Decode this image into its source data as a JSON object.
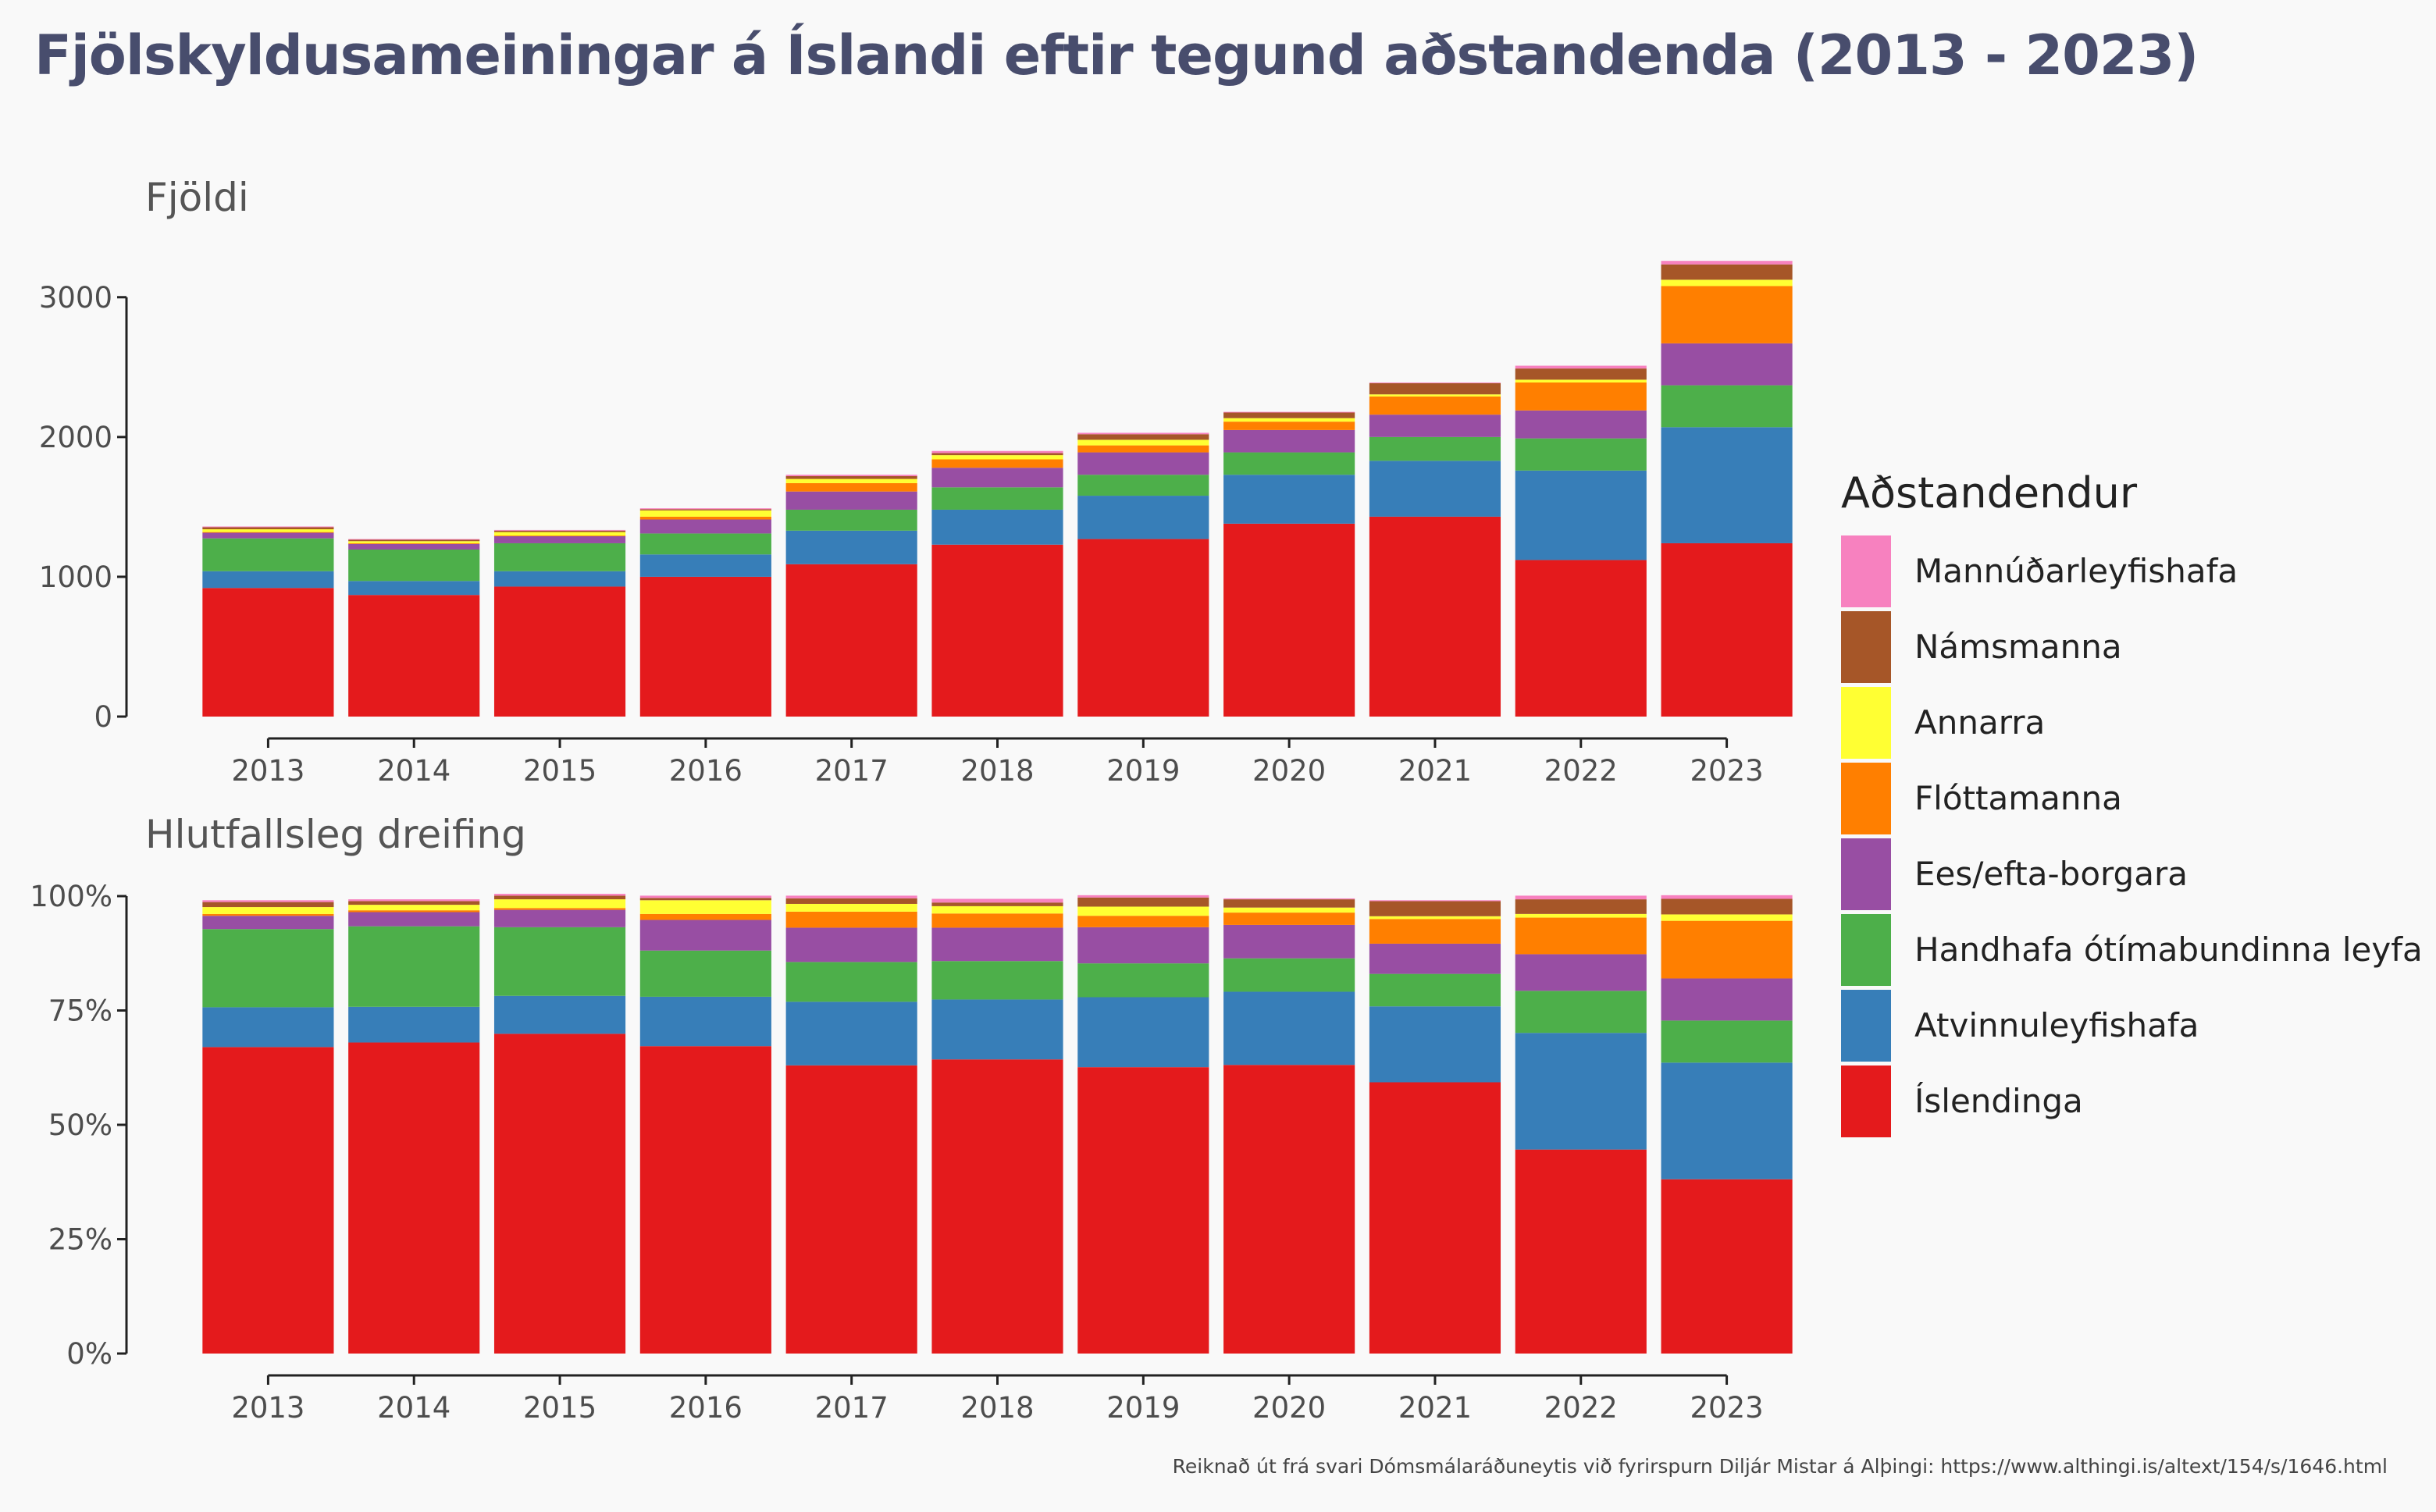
{
  "title": "Fjölskyldusameiningar á Íslandi eftir tegund aðstandenda (2013 - 2023)",
  "caption": "Reiknað út frá svari Dómsmálaráðuneytis við fyrirspurn Diljár Mistar á Alþingi: https://www.althingi.is/altext/154/s/1646.html",
  "legend": {
    "title": "Aðstandendur",
    "items": [
      {
        "label": "Mannúðarleyfishafa",
        "color": "#f781bf"
      },
      {
        "label": "Námsmanna",
        "color": "#a65628"
      },
      {
        "label": " Annarra",
        "color": "#ffff33"
      },
      {
        "label": "Flóttamanna",
        "color": "#ff7f00"
      },
      {
        "label": "Ees/efta-borgara",
        "color": "#984ea3"
      },
      {
        "label": "Handhafa ótímabundinna leyfa",
        "color": "#4daf4a"
      },
      {
        "label": "Atvinnuleyfishafa",
        "color": "#377eb8"
      },
      {
        "label": "Íslendinga",
        "color": "#e41a1c"
      }
    ]
  },
  "chart_data": [
    {
      "type": "bar",
      "stacked": true,
      "title": "Fjöldi",
      "categories": [
        "2013",
        "2014",
        "2015",
        "2016",
        "2017",
        "2018",
        "2019",
        "2020",
        "2021",
        "2022",
        "2023"
      ],
      "ylim": [
        0,
        3250
      ],
      "yticks": [
        "0",
        "1000",
        "2000",
        "3000"
      ],
      "ytick_values": [
        0,
        1000,
        2000,
        3000
      ],
      "series": [
        {
          "name": "Íslendinga",
          "color": "#e41a1c",
          "values": [
            920,
            870,
            930,
            1000,
            1090,
            1230,
            1270,
            1380,
            1430,
            1120,
            1240
          ]
        },
        {
          "name": "Atvinnuleyfishafa",
          "color": "#377eb8",
          "values": [
            120,
            100,
            110,
            160,
            240,
            250,
            310,
            350,
            400,
            640,
            830
          ]
        },
        {
          "name": "Handhafa ótímabundinna leyfa",
          "color": "#4daf4a",
          "values": [
            235,
            225,
            200,
            150,
            150,
            160,
            150,
            160,
            170,
            230,
            300
          ]
        },
        {
          "name": "Ees/efta-borgara",
          "color": "#984ea3",
          "values": [
            40,
            40,
            50,
            100,
            130,
            140,
            160,
            160,
            160,
            200,
            300
          ]
        },
        {
          "name": "Flóttamanna",
          "color": "#ff7f00",
          "values": [
            5,
            5,
            5,
            20,
            60,
            60,
            50,
            60,
            130,
            200,
            410
          ]
        },
        {
          "name": " Annarra",
          "color": "#ffff33",
          "values": [
            20,
            15,
            25,
            45,
            30,
            30,
            40,
            25,
            15,
            20,
            45
          ]
        },
        {
          "name": "Námsmanna",
          "color": "#a65628",
          "values": [
            15,
            10,
            10,
            8,
            20,
            15,
            40,
            40,
            80,
            80,
            110
          ]
        },
        {
          "name": "Mannúðarleyfishafa",
          "color": "#f781bf",
          "values": [
            5,
            5,
            5,
            7,
            10,
            15,
            10,
            5,
            5,
            20,
            25
          ]
        }
      ]
    },
    {
      "type": "bar",
      "stacked": true,
      "title": "Hlutfallsleg dreifing",
      "categories": [
        "2013",
        "2014",
        "2015",
        "2016",
        "2017",
        "2018",
        "2019",
        "2020",
        "2021",
        "2022",
        "2023"
      ],
      "ylim": [
        0,
        100
      ],
      "yticks": [
        "0%",
        "25%",
        "50%",
        "75%",
        "100%"
      ],
      "ytick_values": [
        0,
        25,
        50,
        75,
        100
      ],
      "series": [
        {
          "name": "Íslendinga",
          "color": "#e41a1c",
          "values": [
            67.0,
            68.0,
            69.9,
            67.2,
            63.0,
            64.3,
            62.6,
            63.1,
            59.3,
            44.6,
            38.1
          ]
        },
        {
          "name": "Atvinnuleyfishafa",
          "color": "#377eb8",
          "values": [
            8.7,
            7.8,
            8.3,
            10.8,
            13.9,
            13.1,
            15.3,
            16.0,
            16.6,
            25.5,
            25.5
          ]
        },
        {
          "name": "Handhafa ótímabundinna leyfa",
          "color": "#4daf4a",
          "values": [
            17.1,
            17.6,
            15.0,
            10.1,
            8.7,
            8.4,
            7.4,
            7.3,
            7.1,
            9.2,
            9.2
          ]
        },
        {
          "name": "Ees/efta-borgara",
          "color": "#984ea3",
          "values": [
            2.9,
            3.1,
            3.8,
            6.7,
            7.5,
            7.3,
            7.9,
            7.3,
            6.6,
            8.0,
            9.2
          ]
        },
        {
          "name": "Flóttamanna",
          "color": "#ff7f00",
          "values": [
            0.4,
            0.4,
            0.4,
            1.3,
            3.5,
            3.1,
            2.5,
            2.7,
            5.4,
            8.0,
            12.6
          ]
        },
        {
          "name": " Annarra",
          "color": "#ffff33",
          "values": [
            1.5,
            1.2,
            1.9,
            3.0,
            1.7,
            1.6,
            2.0,
            1.1,
            0.6,
            0.8,
            1.4
          ]
        },
        {
          "name": "Námsmanna",
          "color": "#a65628",
          "values": [
            1.1,
            0.8,
            0.8,
            0.5,
            1.2,
            0.8,
            2.0,
            1.8,
            3.3,
            3.2,
            3.4
          ]
        },
        {
          "name": "Mannúðarleyfishafa",
          "color": "#f781bf",
          "values": [
            0.4,
            0.4,
            0.4,
            0.5,
            0.6,
            0.8,
            0.5,
            0.2,
            0.2,
            0.8,
            0.8
          ]
        }
      ]
    }
  ]
}
